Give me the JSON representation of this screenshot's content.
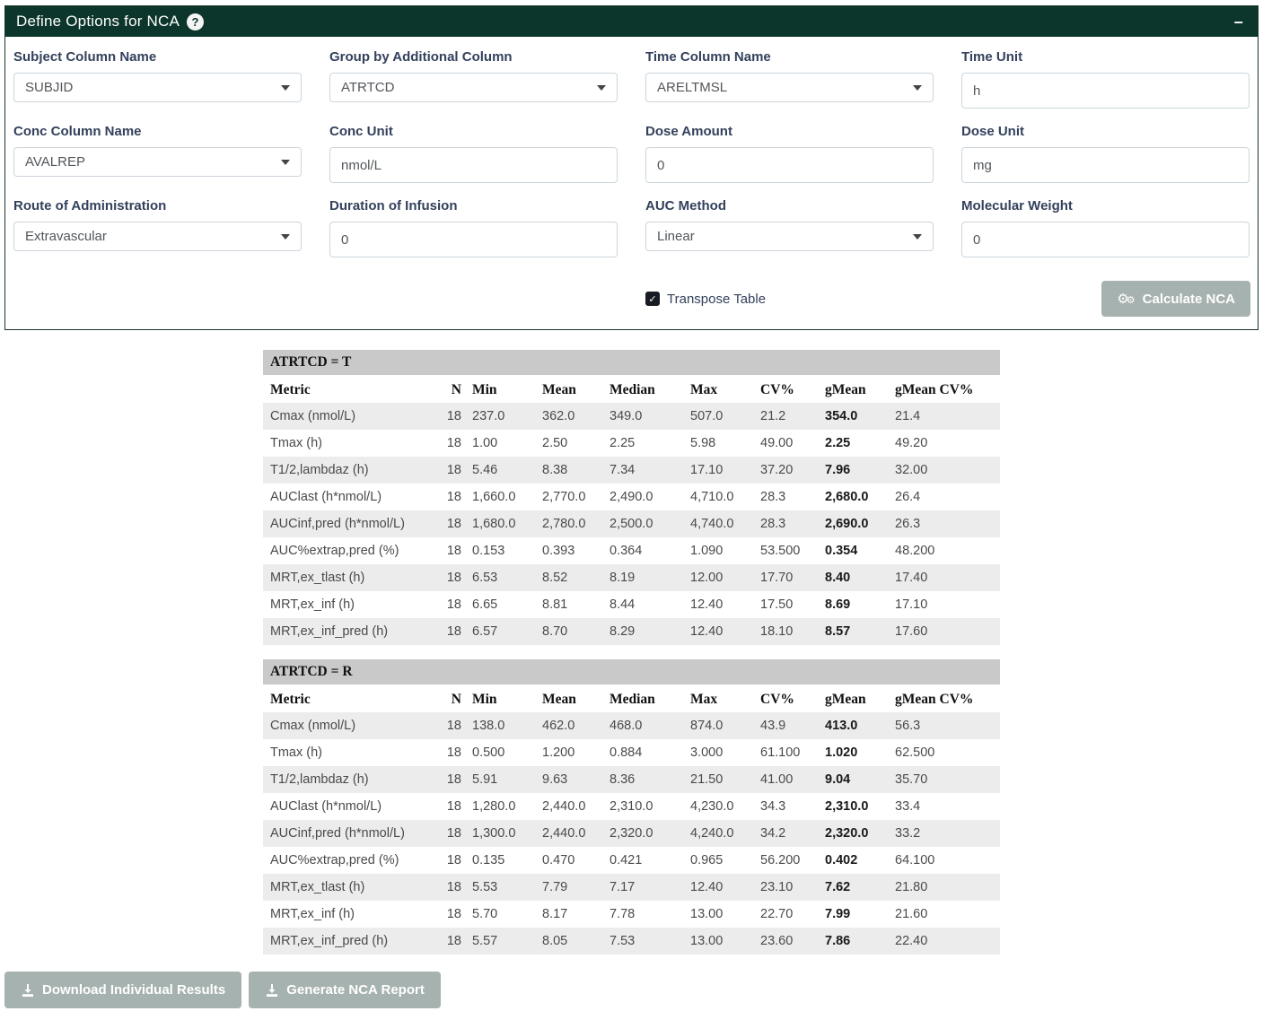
{
  "colors": {
    "header_bg": "#0c352b",
    "panel_border": "#16352c",
    "label_text": "#33415c",
    "button_bg": "#a6b2af",
    "group_header_bg": "#c9c9c9",
    "row_stripe": "#ececec"
  },
  "panel": {
    "title": "Define Options for NCA",
    "help_glyph": "?",
    "minimize_glyph": "–",
    "fields": [
      {
        "id": "subject-column-name",
        "label": "Subject Column Name",
        "type": "select",
        "value": "SUBJID"
      },
      {
        "id": "group-by-additional-column",
        "label": "Group by Additional Column",
        "type": "select",
        "value": "ATRTCD"
      },
      {
        "id": "time-column-name",
        "label": "Time Column Name",
        "type": "select",
        "value": "ARELTMSL"
      },
      {
        "id": "time-unit",
        "label": "Time Unit",
        "type": "text",
        "value": "h"
      },
      {
        "id": "conc-column-name",
        "label": "Conc Column Name",
        "type": "select",
        "value": "AVALREP"
      },
      {
        "id": "conc-unit",
        "label": "Conc Unit",
        "type": "text",
        "value": "nmol/L"
      },
      {
        "id": "dose-amount",
        "label": "Dose Amount",
        "type": "text",
        "value": "0"
      },
      {
        "id": "dose-unit",
        "label": "Dose Unit",
        "type": "text",
        "value": "mg"
      },
      {
        "id": "route-of-administration",
        "label": "Route of Administration",
        "type": "select",
        "value": "Extravascular"
      },
      {
        "id": "duration-of-infusion",
        "label": "Duration of Infusion",
        "type": "text",
        "value": "0"
      },
      {
        "id": "auc-method",
        "label": "AUC Method",
        "type": "select",
        "value": "Linear"
      },
      {
        "id": "molecular-weight",
        "label": "Molecular Weight",
        "type": "text",
        "value": "0"
      }
    ],
    "transpose": {
      "label": "Transpose Table",
      "checked": true,
      "check_glyph": "✓"
    },
    "calculate_label": "Calculate NCA",
    "gear_glyph": "⚙"
  },
  "results": {
    "columns": [
      "Metric",
      "N",
      "Min",
      "Mean",
      "Median",
      "Max",
      "CV%",
      "gMean",
      "gMean CV%"
    ],
    "tables": [
      {
        "group_title": "ATRTCD = T",
        "rows": [
          [
            "Cmax (nmol/L)",
            "18",
            "237.0",
            "362.0",
            "349.0",
            "507.0",
            "21.2",
            "354.0",
            "21.4"
          ],
          [
            "Tmax (h)",
            "18",
            "1.00",
            "2.50",
            "2.25",
            "5.98",
            "49.00",
            "2.25",
            "49.20"
          ],
          [
            "T1/2,lambdaz (h)",
            "18",
            "5.46",
            "8.38",
            "7.34",
            "17.10",
            "37.20",
            "7.96",
            "32.00"
          ],
          [
            "AUClast (h*nmol/L)",
            "18",
            "1,660.0",
            "2,770.0",
            "2,490.0",
            "4,710.0",
            "28.3",
            "2,680.0",
            "26.4"
          ],
          [
            "AUCinf,pred (h*nmol/L)",
            "18",
            "1,680.0",
            "2,780.0",
            "2,500.0",
            "4,740.0",
            "28.3",
            "2,690.0",
            "26.3"
          ],
          [
            "AUC%extrap,pred (%)",
            "18",
            "0.153",
            "0.393",
            "0.364",
            "1.090",
            "53.500",
            "0.354",
            "48.200"
          ],
          [
            "MRT,ex_tlast (h)",
            "18",
            "6.53",
            "8.52",
            "8.19",
            "12.00",
            "17.70",
            "8.40",
            "17.40"
          ],
          [
            "MRT,ex_inf (h)",
            "18",
            "6.65",
            "8.81",
            "8.44",
            "12.40",
            "17.50",
            "8.69",
            "17.10"
          ],
          [
            "MRT,ex_inf_pred (h)",
            "18",
            "6.57",
            "8.70",
            "8.29",
            "12.40",
            "18.10",
            "8.57",
            "17.60"
          ]
        ]
      },
      {
        "group_title": "ATRTCD = R",
        "rows": [
          [
            "Cmax (nmol/L)",
            "18",
            "138.0",
            "462.0",
            "468.0",
            "874.0",
            "43.9",
            "413.0",
            "56.3"
          ],
          [
            "Tmax (h)",
            "18",
            "0.500",
            "1.200",
            "0.884",
            "3.000",
            "61.100",
            "1.020",
            "62.500"
          ],
          [
            "T1/2,lambdaz (h)",
            "18",
            "5.91",
            "9.63",
            "8.36",
            "21.50",
            "41.00",
            "9.04",
            "35.70"
          ],
          [
            "AUClast (h*nmol/L)",
            "18",
            "1,280.0",
            "2,440.0",
            "2,310.0",
            "4,230.0",
            "34.3",
            "2,310.0",
            "33.4"
          ],
          [
            "AUCinf,pred (h*nmol/L)",
            "18",
            "1,300.0",
            "2,440.0",
            "2,320.0",
            "4,240.0",
            "34.2",
            "2,320.0",
            "33.2"
          ],
          [
            "AUC%extrap,pred (%)",
            "18",
            "0.135",
            "0.470",
            "0.421",
            "0.965",
            "56.200",
            "0.402",
            "64.100"
          ],
          [
            "MRT,ex_tlast (h)",
            "18",
            "5.53",
            "7.79",
            "7.17",
            "12.40",
            "23.10",
            "7.62",
            "21.80"
          ],
          [
            "MRT,ex_inf (h)",
            "18",
            "5.70",
            "8.17",
            "7.78",
            "13.00",
            "22.70",
            "7.99",
            "21.60"
          ],
          [
            "MRT,ex_inf_pred (h)",
            "18",
            "5.57",
            "8.05",
            "7.53",
            "13.00",
            "23.60",
            "7.86",
            "22.40"
          ]
        ]
      }
    ]
  },
  "footer": {
    "buttons": [
      {
        "id": "download-individual-results",
        "label": "Download Individual Results"
      },
      {
        "id": "generate-nca-report",
        "label": "Generate NCA Report"
      }
    ]
  }
}
